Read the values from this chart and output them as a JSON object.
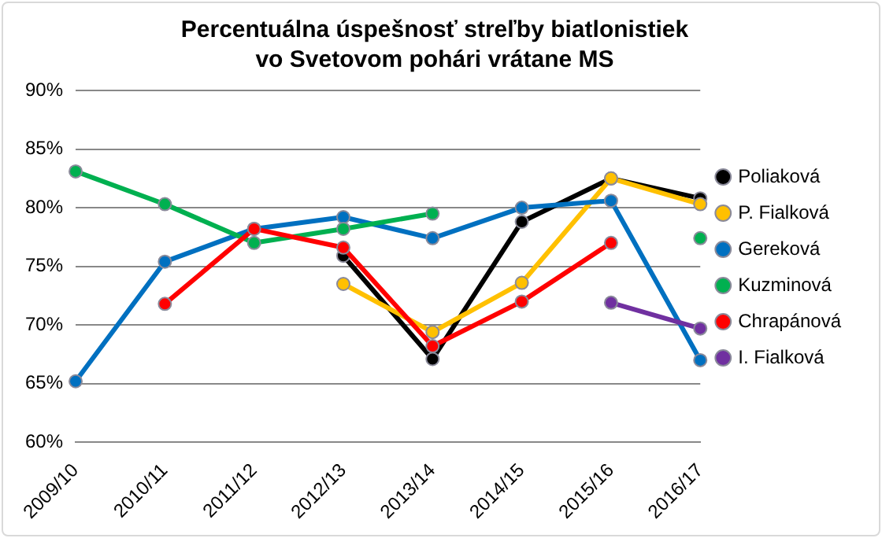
{
  "chart_data": {
    "type": "line",
    "title": "Percentuálna úspešnosť streľby biatlonistiek vo Svetovom pohári vrátane MS",
    "categories": [
      "2009/10",
      "2010/11",
      "2011/12",
      "2012/13",
      "2013/14",
      "2014/15",
      "2015/16",
      "2016/17"
    ],
    "series": [
      {
        "name": "Poliaková",
        "color": "#000000",
        "values": [
          null,
          null,
          null,
          75.9,
          67.1,
          78.8,
          82.5,
          80.8
        ]
      },
      {
        "name": "P. Fialková",
        "color": "#ffc000",
        "values": [
          null,
          null,
          null,
          73.5,
          69.4,
          73.6,
          82.5,
          80.3
        ]
      },
      {
        "name": "Gereková",
        "color": "#0070c0",
        "values": [
          65.2,
          75.4,
          78.2,
          79.2,
          77.4,
          80.0,
          80.6,
          67.0
        ]
      },
      {
        "name": "Kuzminová",
        "color": "#00b050",
        "values": [
          83.1,
          80.3,
          77.0,
          78.2,
          79.5,
          null,
          null,
          77.4
        ]
      },
      {
        "name": "Chrapánová",
        "color": "#ff0000",
        "values": [
          null,
          71.8,
          78.2,
          76.6,
          68.2,
          72.0,
          77.0,
          null
        ]
      },
      {
        "name": "I. Fialková",
        "color": "#7030a0",
        "values": [
          null,
          null,
          null,
          null,
          null,
          null,
          71.9,
          69.7
        ]
      }
    ],
    "ylim": [
      60,
      90
    ],
    "yticks": [
      {
        "value": 60,
        "label": "60%"
      },
      {
        "value": 65,
        "label": "65%"
      },
      {
        "value": 70,
        "label": "70%"
      },
      {
        "value": 75,
        "label": "75%"
      },
      {
        "value": 80,
        "label": "80%"
      },
      {
        "value": 85,
        "label": "85%"
      },
      {
        "value": 90,
        "label": "90%"
      }
    ],
    "grid": "y",
    "legend": "right",
    "marker": "circle",
    "line_style": "solid"
  }
}
